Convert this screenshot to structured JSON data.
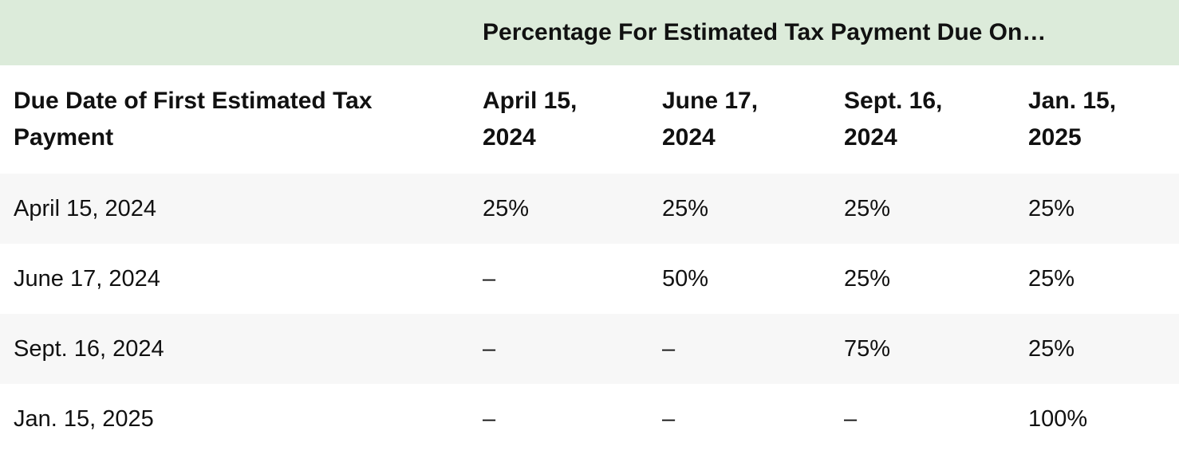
{
  "table": {
    "banner_title": "Percentage For Estimated Tax Payment Due On…",
    "headers": [
      "Due Date of First Estimated Tax Payment",
      "April 15, 2024",
      "June 17, 2024",
      "Sept. 16, 2024",
      "Jan. 15, 2025"
    ],
    "rows": [
      [
        "April 15, 2024",
        "25%",
        "25%",
        "25%",
        "25%"
      ],
      [
        "June 17, 2024",
        "–",
        "50%",
        "25%",
        "25%"
      ],
      [
        "Sept. 16, 2024",
        "–",
        "–",
        "75%",
        "25%"
      ],
      [
        "Jan. 15, 2025",
        "–",
        "–",
        "–",
        "100%"
      ]
    ]
  },
  "colors": {
    "banner_background": "#dcebda",
    "shaded_row": "#f7f7f7",
    "text": "#111111"
  }
}
